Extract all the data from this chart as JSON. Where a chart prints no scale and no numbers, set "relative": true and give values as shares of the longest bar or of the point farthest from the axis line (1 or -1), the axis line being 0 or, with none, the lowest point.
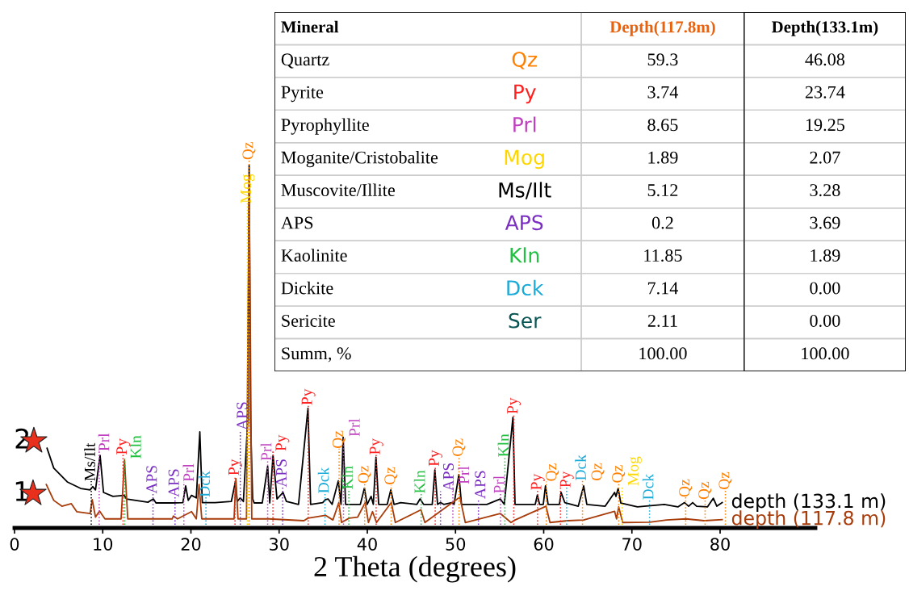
{
  "chart_data": [
    {
      "type": "line",
      "relative": true,
      "xlabel": "2 Theta (degrees)",
      "xlim": [
        0,
        90.8
      ],
      "xticks": [
        0,
        10,
        20,
        30,
        40,
        50,
        60,
        70,
        80
      ],
      "series": [
        {
          "name": "depth (133.1 m)",
          "color": "#000000",
          "x": [
            3.69,
            4.45,
            5.98,
            7.5,
            8.57,
            8.87,
            9.18,
            9.7,
            10.09,
            11.16,
            12.44,
            12.69,
            15.13,
            15.74,
            16.04,
            17.87,
            19.09,
            19.4,
            19.7,
            20.07,
            20.61,
            21.01,
            21.29,
            22.75,
            24.58,
            25.04,
            25.25,
            25.59,
            25.95,
            26.45,
            26.6,
            26.75,
            27.0,
            27.17,
            28.09,
            28.7,
            28.94,
            29.31,
            29.76,
            30.44,
            30.83,
            32.2,
            33.27,
            33.57,
            34.94,
            35.25,
            35.55,
            36.01,
            36.71,
            37.02,
            37.26,
            37.54,
            39.21,
            39.67,
            39.98,
            40.43,
            40.68,
            40.98,
            41.29,
            42.26,
            42.66,
            43.03,
            43.79,
            45.62,
            45.98,
            46.38,
            47.36,
            47.66,
            47.97,
            48.3,
            48.67,
            49.58,
            49.83,
            50.38,
            50.68,
            53.55,
            55.07,
            55.53,
            56.51,
            56.75,
            59.04,
            59.28,
            59.53,
            59.95,
            60.2,
            60.5,
            61.78,
            61.97,
            62.39,
            63.92,
            64.53,
            64.89,
            66.97,
            68.04,
            68.19,
            68.44,
            68.74,
            70.63,
            73.68,
            75.21,
            75.97,
            76.43,
            76.89,
            77.34,
            78.56,
            79.23,
            79.63,
            80.24
          ],
          "values": [
            0.22,
            0.165,
            0.127,
            0.109,
            0.105,
            0.114,
            0.105,
            0.2,
            0.098,
            0.087,
            0.09,
            0.08,
            0.071,
            0.08,
            0.069,
            0.069,
            0.07,
            0.116,
            0.076,
            0.09,
            0.083,
            0.265,
            0.07,
            0.07,
            0.073,
            0.127,
            0.073,
            0.083,
            0.073,
            0.3,
            1.0,
            0.3,
            0.08,
            0.069,
            0.069,
            0.17,
            0.069,
            0.2,
            0.08,
            0.098,
            0.073,
            0.065,
            0.33,
            0.065,
            0.07,
            0.078,
            0.08,
            0.065,
            0.13,
            0.065,
            0.25,
            0.065,
            0.065,
            0.11,
            0.065,
            0.087,
            0.065,
            0.195,
            0.065,
            0.065,
            0.105,
            0.065,
            0.07,
            0.065,
            0.08,
            0.065,
            0.065,
            0.16,
            0.065,
            0.07,
            0.065,
            0.07,
            0.065,
            0.147,
            0.065,
            0.065,
            0.08,
            0.065,
            0.305,
            0.065,
            0.065,
            0.091,
            0.065,
            0.065,
            0.116,
            0.065,
            0.065,
            0.098,
            0.07,
            0.06,
            0.116,
            0.065,
            0.06,
            0.098,
            0.087,
            0.109,
            0.069,
            0.058,
            0.065,
            0.058,
            0.07,
            0.06,
            0.07,
            0.06,
            0.058,
            0.082,
            0.06,
            0.07
          ]
        },
        {
          "name": "depth (117.8 m)",
          "color": "#a83c0a",
          "x": [
            3.6,
            4.45,
            5.37,
            6.44,
            7.05,
            8.57,
            8.81,
            9.18,
            9.64,
            10.25,
            12.08,
            12.47,
            12.84,
            17.87,
            18.02,
            18.48,
            20.07,
            20.61,
            20.92,
            21.23,
            24.89,
            25.1,
            25.34,
            26.3,
            26.6,
            26.9,
            27.17,
            28.85,
            32.81,
            33.27,
            35.25,
            36.1,
            36.77,
            37.08,
            37.93,
            38.91,
            39.76,
            40.13,
            40.59,
            41.04,
            42.72,
            43.18,
            46.08,
            46.53,
            50.5,
            51.11,
            55.07,
            56.29,
            56.75,
            60.26,
            60.71,
            62.7,
            64.53,
            68.04,
            68.26,
            68.5,
            68.96,
            72.0,
            73.93,
            76.12,
            78.2,
            80.24
          ],
          "values": [
            0.12,
            0.076,
            0.06,
            0.067,
            0.045,
            0.04,
            0.078,
            0.03,
            0.047,
            0.025,
            0.025,
            0.187,
            0.025,
            0.025,
            0.033,
            0.025,
            0.045,
            0.025,
            0.12,
            0.025,
            0.025,
            0.136,
            0.025,
            0.025,
            0.97,
            0.025,
            0.025,
            0.025,
            0.02,
            0.027,
            0.035,
            0.022,
            0.07,
            0.015,
            0.027,
            0.03,
            0.07,
            0.015,
            0.045,
            0.015,
            0.07,
            0.015,
            0.05,
            0.015,
            0.085,
            0.015,
            0.04,
            0.015,
            0.022,
            0.06,
            0.015,
            0.02,
            0.022,
            0.046,
            0.025,
            0.058,
            0.015,
            0.016,
            0.022,
            0.025,
            0.02,
            0.023
          ]
        }
      ],
      "annotations": [
        "2",
        "1"
      ],
      "ref_lines": [
        {
          "axis": "x",
          "value": 8.7,
          "label": "Ms/Ilt",
          "color": "#000000",
          "line_style": "dotted"
        },
        {
          "axis": "x",
          "value": 9.6,
          "label": "Prl",
          "color": "#c040c0",
          "line_style": "dotted"
        },
        {
          "axis": "x",
          "value": 12.3,
          "label": "Py",
          "color": "#ff2020",
          "line_style": "dotted"
        },
        {
          "axis": "x",
          "value": 12.5,
          "label": "Kln",
          "color": "#20c040",
          "line_style": "dotted"
        },
        {
          "axis": "x",
          "value": 15.7,
          "label": "APS",
          "color": "#7a2ec2",
          "line_style": "dotted"
        },
        {
          "axis": "x",
          "value": 18.2,
          "label": "APS",
          "color": "#7a2ec2",
          "line_style": "dotted"
        },
        {
          "axis": "x",
          "value": 19.2,
          "label": "Prl",
          "color": "#c040c0",
          "line_style": "dotted"
        },
        {
          "axis": "x",
          "value": 21.7,
          "label": "Dck",
          "color": "#1aaad8",
          "line_style": "dotted"
        },
        {
          "axis": "x",
          "value": 25.0,
          "label": "Py",
          "color": "#ff2020",
          "line_style": "dotted"
        },
        {
          "axis": "x",
          "value": 25.6,
          "label": "APS",
          "color": "#7a2ec2",
          "line_style": "dotted"
        },
        {
          "axis": "x",
          "value": 26.4,
          "label": "Mog",
          "color": "#ffd700",
          "line_style": "dotted"
        },
        {
          "axis": "x",
          "value": 26.6,
          "label": "Qz",
          "color": "#ff8000",
          "line_style": "dotted"
        },
        {
          "axis": "x",
          "value": 28.7,
          "label": "Prl",
          "color": "#c040c0",
          "line_style": "dotted"
        },
        {
          "axis": "x",
          "value": 29.3,
          "label": "Py",
          "color": "#ff2020",
          "line_style": "dotted"
        },
        {
          "axis": "x",
          "value": 30.4,
          "label": "APS",
          "color": "#7a2ec2",
          "line_style": "dotted"
        },
        {
          "axis": "x",
          "value": 33.3,
          "label": "Py",
          "color": "#ff2020",
          "line_style": "dotted"
        },
        {
          "axis": "x",
          "value": 35.2,
          "label": "Dck",
          "color": "#1aaad8",
          "line_style": "dotted"
        },
        {
          "axis": "x",
          "value": 36.8,
          "label": "Qz",
          "color": "#ff8000",
          "line_style": "dotted"
        },
        {
          "axis": "x",
          "value": 37.3,
          "label": "Prl",
          "color": "#c040c0",
          "line_style": "dotted"
        },
        {
          "axis": "x",
          "value": 37.9,
          "label": "Kln",
          "color": "#20c040",
          "line_style": "dotted"
        },
        {
          "axis": "x",
          "value": 39.7,
          "label": "Qz",
          "color": "#ff8000",
          "line_style": "dotted"
        },
        {
          "axis": "x",
          "value": 41.0,
          "label": "Py",
          "color": "#ff2020",
          "line_style": "dotted"
        },
        {
          "axis": "x",
          "value": 42.7,
          "label": "Qz",
          "color": "#ff8000",
          "line_style": "dotted"
        },
        {
          "axis": "x",
          "value": 46.1,
          "label": "Kln",
          "color": "#20c040",
          "line_style": "dotted"
        },
        {
          "axis": "x",
          "value": 47.7,
          "label": "Py",
          "color": "#ff2020",
          "line_style": "dotted"
        },
        {
          "axis": "x",
          "value": 48.3,
          "label": "APS",
          "color": "#7a2ec2",
          "line_style": "dotted"
        },
        {
          "axis": "x",
          "value": 49.7,
          "label": "Prl",
          "color": "#c040c0",
          "line_style": "dotted"
        },
        {
          "axis": "x",
          "value": 50.4,
          "label": "Qz",
          "color": "#ff8000",
          "line_style": "dotted"
        },
        {
          "axis": "x",
          "value": 52.6,
          "label": "APS",
          "color": "#7a2ec2",
          "line_style": "dotted"
        },
        {
          "axis": "x",
          "value": 55.1,
          "label": "Prl",
          "color": "#c040c0",
          "line_style": "dotted"
        },
        {
          "axis": "x",
          "value": 55.6,
          "label": "Kln",
          "color": "#20c040",
          "line_style": "dotted"
        },
        {
          "axis": "x",
          "value": 56.6,
          "label": "Py",
          "color": "#ff2020",
          "line_style": "dotted"
        },
        {
          "axis": "x",
          "value": 59.3,
          "label": "Py",
          "color": "#ff2020",
          "line_style": "dotted"
        },
        {
          "axis": "x",
          "value": 60.3,
          "label": "Qz",
          "color": "#ff8000",
          "line_style": "dotted"
        },
        {
          "axis": "x",
          "value": 61.9,
          "label": "Py",
          "color": "#ff2020",
          "line_style": "dotted"
        },
        {
          "axis": "x",
          "value": 62.6,
          "label": "Dck",
          "color": "#1aaad8",
          "line_style": "dotted"
        },
        {
          "axis": "x",
          "value": 64.4,
          "label": "Qz",
          "color": "#ff8000",
          "line_style": "dotted"
        },
        {
          "axis": "x",
          "value": 68.5,
          "label": "Qz",
          "color": "#ff8000",
          "line_style": "dotted"
        },
        {
          "axis": "x",
          "value": 68.9,
          "label": "Mog",
          "color": "#ffd700",
          "line_style": "dotted"
        },
        {
          "axis": "x",
          "value": 72.0,
          "label": "Dck",
          "color": "#1aaad8",
          "line_style": "dotted"
        },
        {
          "axis": "x",
          "value": 76.1,
          "label": "Qz",
          "color": "#ff8000",
          "line_style": "dotted"
        },
        {
          "axis": "x",
          "value": 78.3,
          "label": "Qz",
          "color": "#ff8000",
          "line_style": "dotted"
        },
        {
          "axis": "x",
          "value": 80.6,
          "label": "Qz",
          "color": "#ff8000",
          "line_style": "dotted"
        }
      ]
    },
    {
      "type": "other",
      "ylabel": "Mineral",
      "categories": [
        "Quartz",
        "Pyrite",
        "Pyrophyllite",
        "Moganite/Cristobalite",
        "Muscovite/Illite",
        "APS",
        "Kaolinite",
        "Dickite",
        "Sericite",
        "Summ, %"
      ],
      "y2_categories": [
        "Qz",
        "Py",
        "Prl",
        "Mog",
        "Ms/Ilt",
        "APS",
        "Kln",
        "Dck",
        "Ser",
        null
      ],
      "colors": [
        "#ff8000",
        "#ff2020",
        "#c040c0",
        "#ffd700",
        "#000000",
        "#7a2ec2",
        "#20c040",
        "#1aaad8",
        "#0b5555",
        null
      ],
      "series": [
        {
          "name": "Depth(117.8m)",
          "color": "#e8620e",
          "values": [
            59.3,
            3.74,
            8.65,
            1.89,
            5.12,
            0.2,
            11.85,
            7.14,
            2.11,
            100
          ],
          "value_labels": [
            "59.3",
            "3.74",
            "8.65",
            "1.89",
            "5.12",
            "0.2",
            "11.85",
            "7.14",
            "2.11",
            "100.00"
          ]
        },
        {
          "name": "Depth(133.1m)",
          "color": "#000000",
          "values": [
            46.08,
            23.74,
            19.25,
            2.07,
            3.28,
            3.69,
            1.89,
            0,
            0,
            100
          ],
          "value_labels": [
            "46.08",
            "23.74",
            "19.25",
            "2.07",
            "3.28",
            "3.69",
            "1.89",
            "0.00",
            "0.00",
            "100.00"
          ]
        }
      ]
    }
  ]
}
